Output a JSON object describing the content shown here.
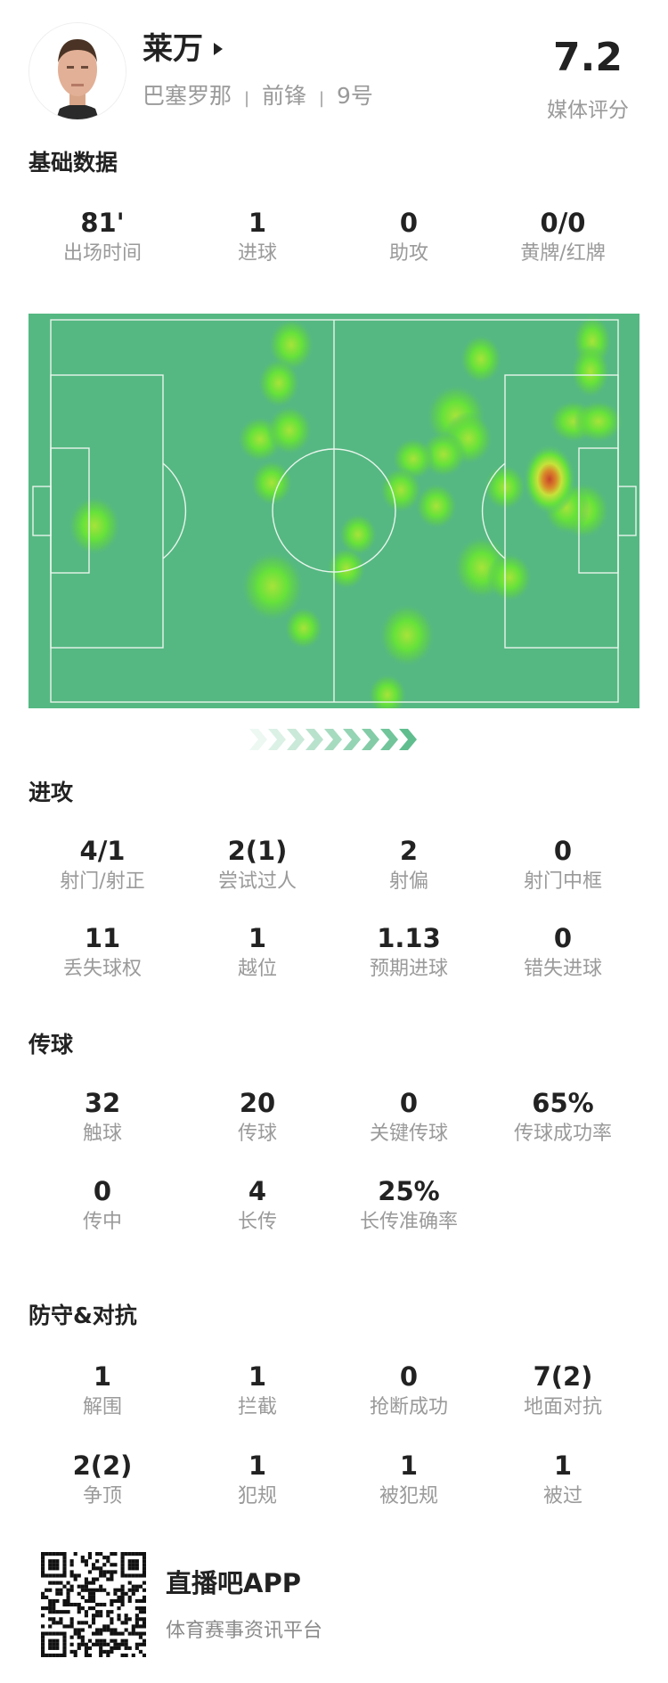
{
  "player": {
    "name": "莱万",
    "team": "巴塞罗那",
    "position": "前锋",
    "number": "9号",
    "separator": "|",
    "rating": "7.2",
    "rating_label": "媒体评分"
  },
  "sections": {
    "basic": {
      "title": "基础数据",
      "rows": [
        [
          {
            "value": "81'",
            "label": "出场时间"
          },
          {
            "value": "1",
            "label": "进球"
          },
          {
            "value": "0",
            "label": "助攻"
          },
          {
            "value": "0/0",
            "label": "黄牌/红牌"
          }
        ]
      ]
    },
    "attack": {
      "title": "进攻",
      "rows": [
        [
          {
            "value": "4/1",
            "label": "射门/射正"
          },
          {
            "value": "2(1)",
            "label": "尝试过人"
          },
          {
            "value": "2",
            "label": "射偏"
          },
          {
            "value": "0",
            "label": "射门中框"
          }
        ],
        [
          {
            "value": "11",
            "label": "丢失球权"
          },
          {
            "value": "1",
            "label": "越位"
          },
          {
            "value": "1.13",
            "label": "预期进球"
          },
          {
            "value": "0",
            "label": "错失进球"
          }
        ]
      ]
    },
    "passing": {
      "title": "传球",
      "rows": [
        [
          {
            "value": "32",
            "label": "触球"
          },
          {
            "value": "20",
            "label": "传球"
          },
          {
            "value": "0",
            "label": "关键传球"
          },
          {
            "value": "65%",
            "label": "传球成功率"
          }
        ],
        [
          {
            "value": "0",
            "label": "传中"
          },
          {
            "value": "4",
            "label": "长传"
          },
          {
            "value": "25%",
            "label": "长传准确率"
          }
        ]
      ]
    },
    "defense": {
      "title": "防守&对抗",
      "rows": [
        [
          {
            "value": "1",
            "label": "解围"
          },
          {
            "value": "1",
            "label": "拦截"
          },
          {
            "value": "0",
            "label": "抢断成功"
          },
          {
            "value": "7(2)",
            "label": "地面对抗"
          }
        ],
        [
          {
            "value": "2(2)",
            "label": "争顶"
          },
          {
            "value": "1",
            "label": "犯规"
          },
          {
            "value": "1",
            "label": "被犯规"
          },
          {
            "value": "1",
            "label": "被过"
          }
        ]
      ]
    }
  },
  "heatmap": {
    "pitch_color": "#55b882",
    "line_color": "#e8f5ec",
    "attack_direction": "right"
  },
  "footer": {
    "app_name": "直播吧APP",
    "tagline": "体育赛事资讯平台"
  }
}
